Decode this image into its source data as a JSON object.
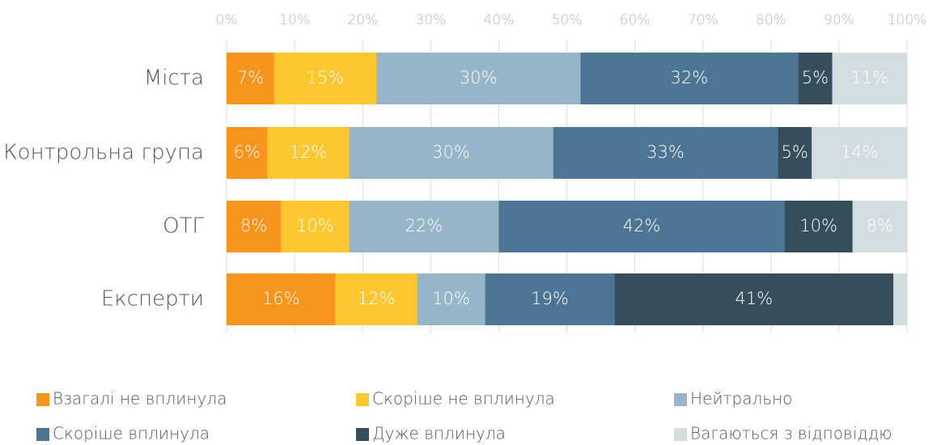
{
  "chart_data": {
    "type": "stacked-bar-horizontal",
    "categories": [
      "Міста",
      "Контрольна група",
      "ОТГ",
      "Експерти"
    ],
    "series": [
      {
        "name": "Взагалі не вплинула",
        "color": "#f7941d",
        "values": [
          7,
          6,
          8,
          16
        ],
        "value_labels": [
          "7%",
          "6%",
          "8%",
          "16%"
        ]
      },
      {
        "name": "Скоріше не вплинула",
        "color": "#fdc82f",
        "values": [
          15,
          12,
          10,
          12
        ],
        "value_labels": [
          "15%",
          "12%",
          "10%",
          "12%"
        ]
      },
      {
        "name": "Нейтрально",
        "color": "#97b5c9",
        "values": [
          30,
          30,
          22,
          10
        ],
        "value_labels": [
          "30%",
          "30%",
          "22%",
          "10%"
        ]
      },
      {
        "name": "Скоріше вплинула",
        "color": "#4b7593",
        "values": [
          32,
          33,
          42,
          19
        ],
        "value_labels": [
          "32%",
          "33%",
          "42%",
          "19%"
        ]
      },
      {
        "name": "Дуже вплинула",
        "color": "#364e5c",
        "values": [
          5,
          5,
          10,
          41
        ],
        "value_labels": [
          "5%",
          "5%",
          "10%",
          "41%"
        ]
      },
      {
        "name": "Вагаються з відповіддю",
        "color": "#d3dcdf",
        "values": [
          11,
          14,
          8,
          2
        ],
        "value_labels": [
          "11%",
          "14%",
          "8%",
          null
        ]
      }
    ],
    "xlim": [
      0,
      100
    ],
    "xticks": [
      {
        "value": 0,
        "label": "0%"
      },
      {
        "value": 10,
        "label": "10%"
      },
      {
        "value": 20,
        "label": "20%"
      },
      {
        "value": 30,
        "label": "30%"
      },
      {
        "value": 40,
        "label": "40%"
      },
      {
        "value": 50,
        "label": "50%"
      },
      {
        "value": 60,
        "label": "60%"
      },
      {
        "value": 70,
        "label": "70%"
      },
      {
        "value": 80,
        "label": "80%"
      },
      {
        "value": 90,
        "label": "90%"
      },
      {
        "value": 100,
        "label": "100%"
      }
    ],
    "grid": true,
    "legend": "bottom"
  }
}
